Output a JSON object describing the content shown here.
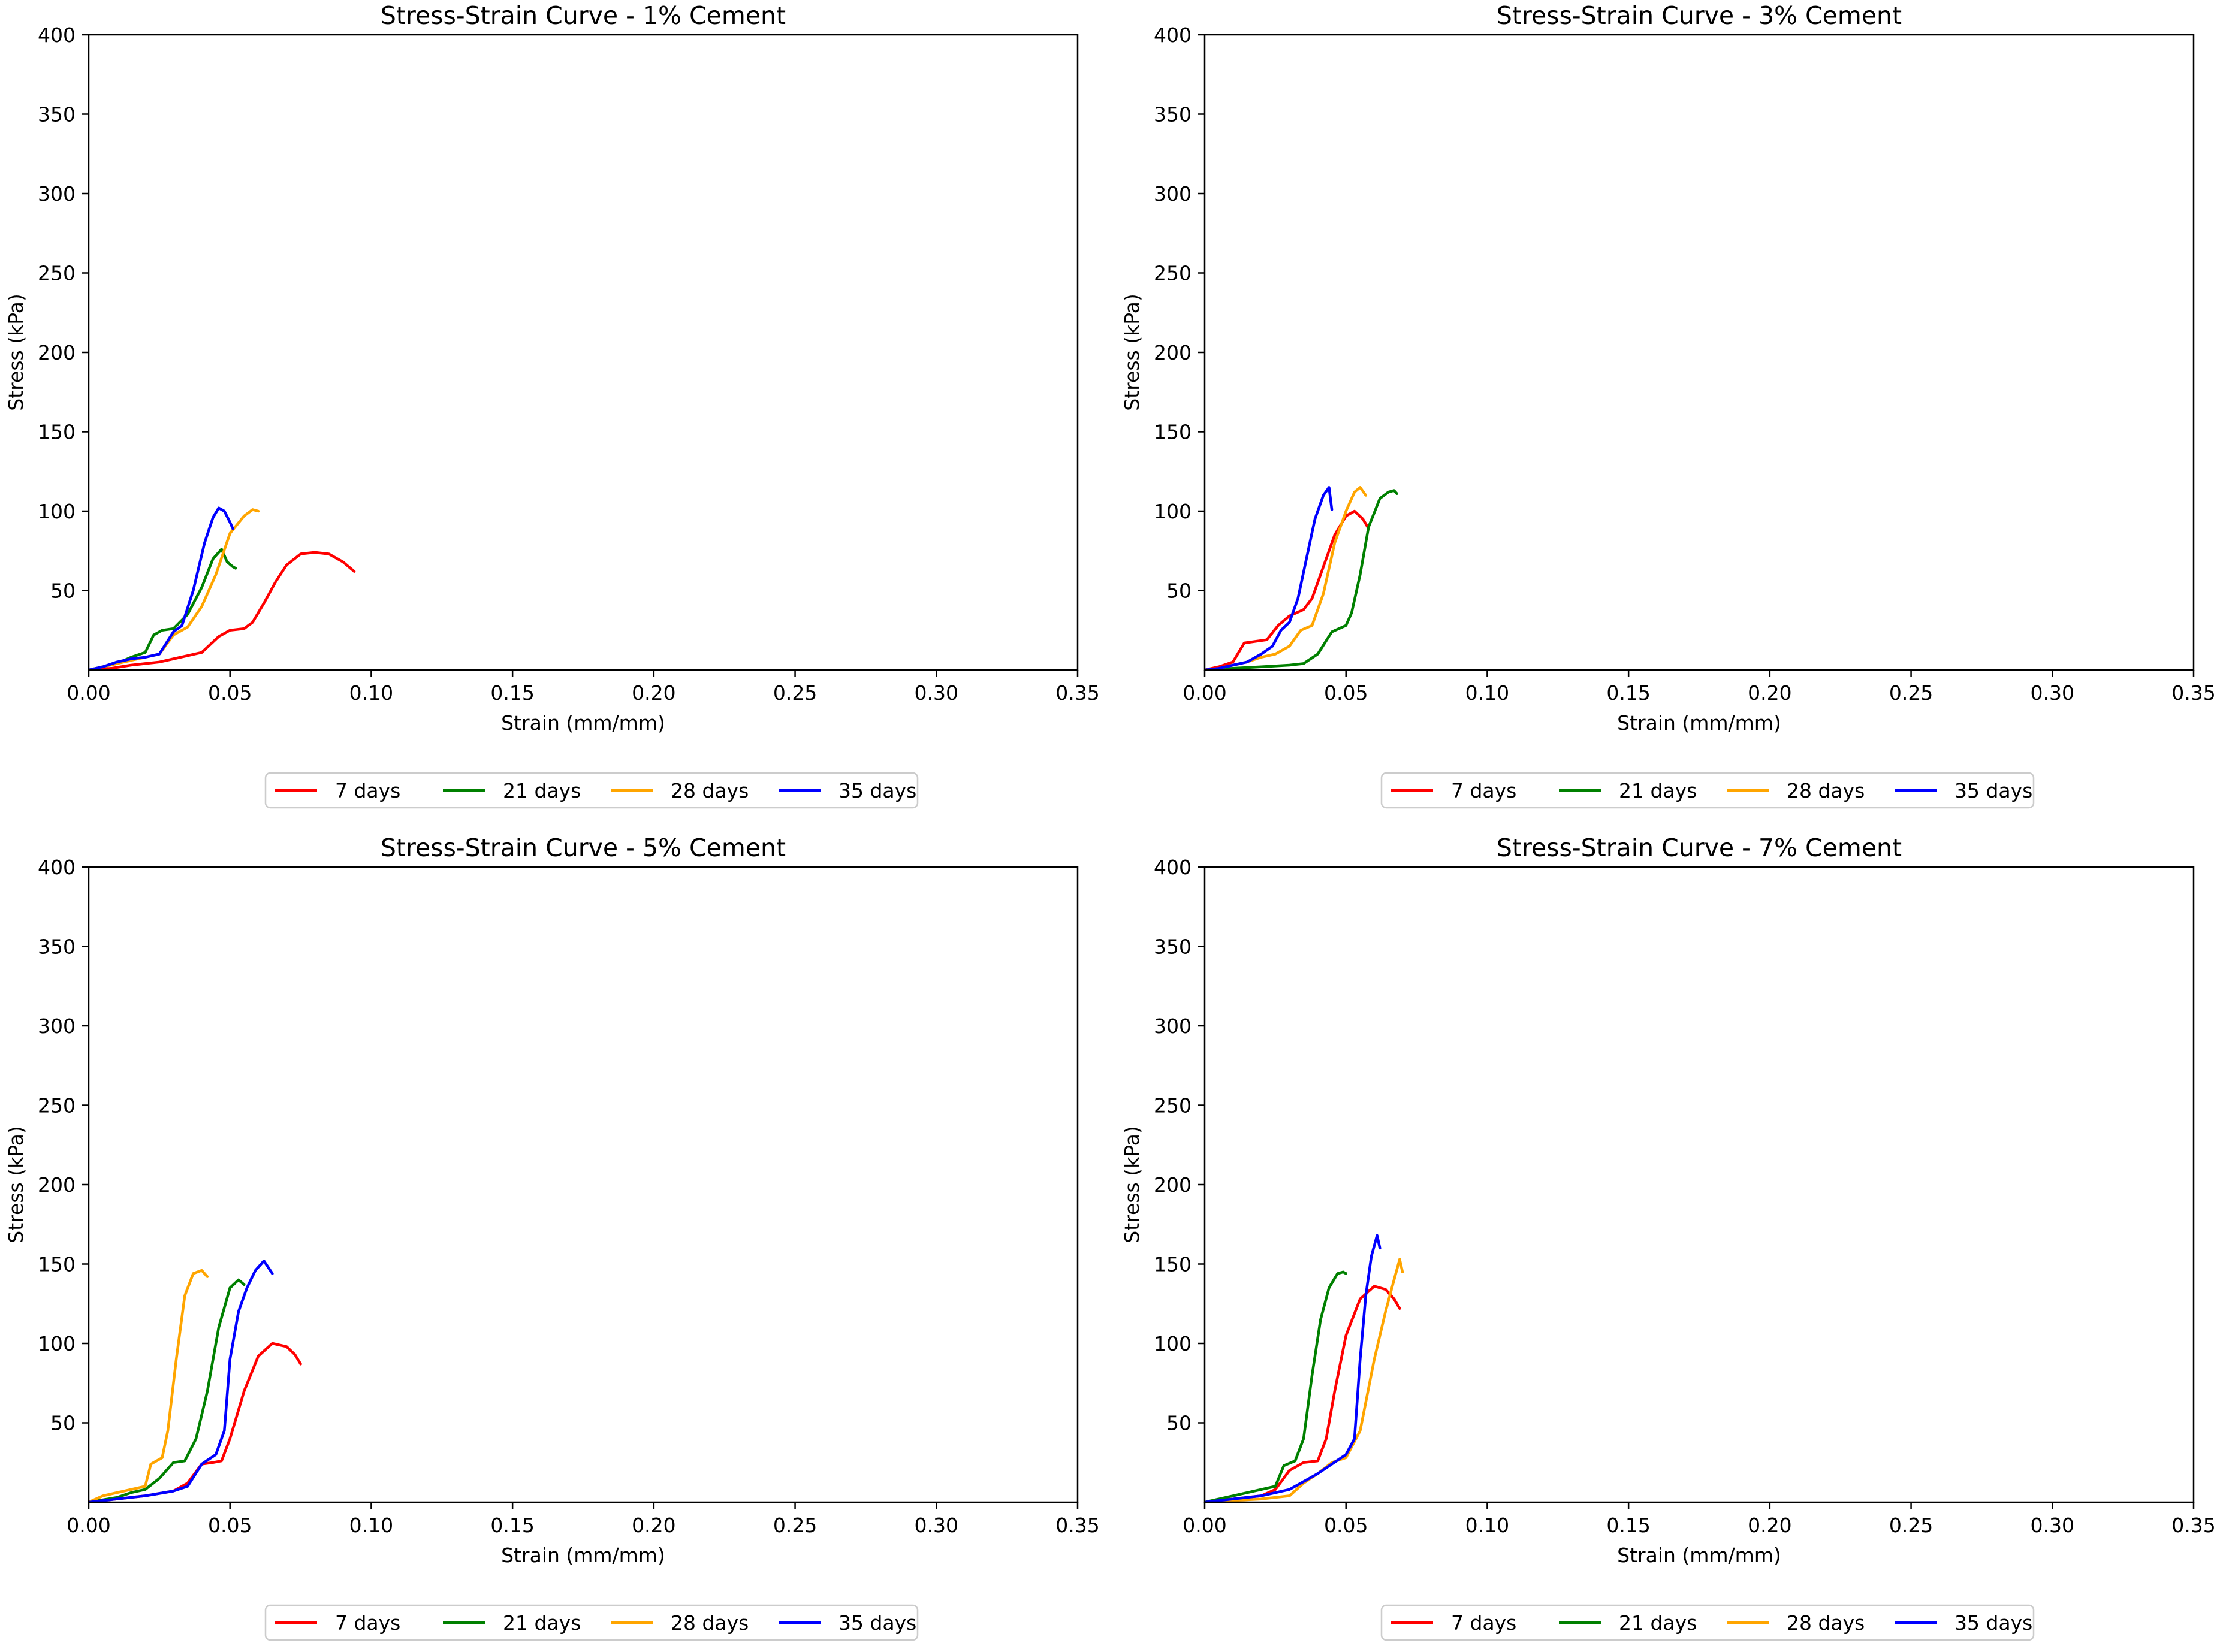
{
  "chart_data": [
    {
      "type": "line",
      "title": "Stress-Strain Curve - 1% Cement",
      "xlabel": "Strain (mm/mm)",
      "ylabel": "Stress (kPa)",
      "xlim": [
        0,
        0.35
      ],
      "ylim": [
        0,
        400
      ],
      "xticks": [
        "0.00",
        "0.05",
        "0.10",
        "0.15",
        "0.20",
        "0.25",
        "0.30",
        "0.35"
      ],
      "yticks": [
        "50",
        "100",
        "150",
        "200",
        "250",
        "300",
        "350",
        "400"
      ],
      "legend_position": "below",
      "series": [
        {
          "name": "7 days",
          "color": "#ff0000",
          "x": [
            0,
            0.008,
            0.015,
            0.02,
            0.025,
            0.03,
            0.035,
            0.04,
            0.043,
            0.046,
            0.05,
            0.055,
            0.058,
            0.062,
            0.066,
            0.07,
            0.075,
            0.08,
            0.085,
            0.09,
            0.094
          ],
          "y": [
            0,
            1,
            3,
            4,
            5,
            7,
            9,
            11,
            16,
            21,
            25,
            26,
            30,
            42,
            55,
            66,
            73,
            74,
            73,
            68,
            62
          ]
        },
        {
          "name": "21 days",
          "color": "#008000",
          "x": [
            0,
            0.005,
            0.01,
            0.015,
            0.02,
            0.023,
            0.026,
            0.03,
            0.035,
            0.04,
            0.044,
            0.047,
            0.049,
            0.051,
            0.052
          ],
          "y": [
            0,
            2,
            4,
            8,
            11,
            22,
            25,
            26,
            35,
            52,
            70,
            76,
            68,
            65,
            64
          ]
        },
        {
          "name": "28 days",
          "color": "#ffa500",
          "x": [
            0,
            0.005,
            0.01,
            0.015,
            0.02,
            0.025,
            0.03,
            0.035,
            0.04,
            0.045,
            0.05,
            0.055,
            0.058,
            0.06
          ],
          "y": [
            0,
            2,
            4,
            6,
            8,
            10,
            22,
            27,
            40,
            60,
            86,
            97,
            101,
            100
          ]
        },
        {
          "name": "35 days",
          "color": "#0000ff",
          "x": [
            0,
            0.005,
            0.01,
            0.015,
            0.02,
            0.025,
            0.03,
            0.033,
            0.037,
            0.041,
            0.044,
            0.046,
            0.048,
            0.05,
            0.051
          ],
          "y": [
            0,
            2,
            5,
            7,
            8,
            10,
            24,
            28,
            50,
            80,
            96,
            102,
            100,
            93,
            89
          ]
        }
      ]
    },
    {
      "type": "line",
      "title": "Stress-Strain Curve - 3% Cement",
      "xlabel": "Strain (mm/mm)",
      "ylabel": "Stress (kPa)",
      "xlim": [
        0,
        0.35
      ],
      "ylim": [
        0,
        400
      ],
      "xticks": [
        "0.00",
        "0.05",
        "0.10",
        "0.15",
        "0.20",
        "0.25",
        "0.30",
        "0.35"
      ],
      "yticks": [
        "50",
        "100",
        "150",
        "200",
        "250",
        "300",
        "350",
        "400"
      ],
      "legend_position": "below",
      "series": [
        {
          "name": "7 days",
          "color": "#ff0000",
          "x": [
            0,
            0.005,
            0.01,
            0.014,
            0.018,
            0.022,
            0.026,
            0.03,
            0.035,
            0.038,
            0.042,
            0.046,
            0.05,
            0.053,
            0.056,
            0.058
          ],
          "y": [
            0,
            2,
            5,
            17,
            18,
            19,
            28,
            34,
            38,
            45,
            65,
            85,
            97,
            100,
            95,
            89
          ]
        },
        {
          "name": "21 days",
          "color": "#008000",
          "x": [
            0,
            0.01,
            0.02,
            0.03,
            0.035,
            0.04,
            0.045,
            0.05,
            0.052,
            0.055,
            0.058,
            0.062,
            0.065,
            0.067,
            0.068
          ],
          "y": [
            0,
            1,
            2,
            3,
            4,
            10,
            24,
            28,
            36,
            60,
            90,
            108,
            112,
            113,
            111
          ]
        },
        {
          "name": "28 days",
          "color": "#ffa500",
          "x": [
            0,
            0.005,
            0.01,
            0.015,
            0.02,
            0.025,
            0.03,
            0.034,
            0.038,
            0.042,
            0.046,
            0.05,
            0.053,
            0.055,
            0.057
          ],
          "y": [
            0,
            1,
            3,
            5,
            8,
            10,
            15,
            25,
            28,
            48,
            80,
            100,
            112,
            115,
            110
          ]
        },
        {
          "name": "35 days",
          "color": "#0000ff",
          "x": [
            0,
            0.005,
            0.01,
            0.015,
            0.02,
            0.024,
            0.027,
            0.03,
            0.033,
            0.036,
            0.039,
            0.042,
            0.044,
            0.045
          ],
          "y": [
            0,
            1,
            3,
            5,
            10,
            15,
            25,
            30,
            45,
            70,
            95,
            110,
            115,
            101
          ]
        }
      ]
    },
    {
      "type": "line",
      "title": "Stress-Strain Curve - 5% Cement",
      "xlabel": "Strain (mm/mm)",
      "ylabel": "Stress (kPa)",
      "xlim": [
        0,
        0.35
      ],
      "ylim": [
        0,
        400
      ],
      "xticks": [
        "0.00",
        "0.05",
        "0.10",
        "0.15",
        "0.20",
        "0.25",
        "0.30",
        "0.35"
      ],
      "yticks": [
        "50",
        "100",
        "150",
        "200",
        "250",
        "300",
        "350",
        "400"
      ],
      "legend_position": "below",
      "series": [
        {
          "name": "7 days",
          "color": "#ff0000",
          "x": [
            0,
            0.01,
            0.02,
            0.03,
            0.035,
            0.04,
            0.044,
            0.047,
            0.05,
            0.055,
            0.06,
            0.065,
            0.07,
            0.073,
            0.075
          ],
          "y": [
            0,
            2,
            4,
            7,
            12,
            24,
            25,
            26,
            40,
            70,
            92,
            100,
            98,
            93,
            87
          ]
        },
        {
          "name": "21 days",
          "color": "#008000",
          "x": [
            0,
            0.01,
            0.015,
            0.02,
            0.025,
            0.03,
            0.034,
            0.038,
            0.042,
            0.046,
            0.05,
            0.053,
            0.055
          ],
          "y": [
            0,
            3,
            6,
            8,
            15,
            25,
            26,
            40,
            70,
            110,
            135,
            140,
            137
          ]
        },
        {
          "name": "28 days",
          "color": "#ffa500",
          "x": [
            0,
            0.005,
            0.01,
            0.015,
            0.02,
            0.022,
            0.026,
            0.028,
            0.031,
            0.034,
            0.037,
            0.04,
            0.042
          ],
          "y": [
            0,
            4,
            6,
            8,
            10,
            24,
            28,
            45,
            90,
            130,
            144,
            146,
            142
          ]
        },
        {
          "name": "35 days",
          "color": "#0000ff",
          "x": [
            0,
            0.01,
            0.02,
            0.03,
            0.035,
            0.04,
            0.045,
            0.048,
            0.05,
            0.053,
            0.056,
            0.059,
            0.062,
            0.065
          ],
          "y": [
            0,
            2,
            4,
            7,
            10,
            24,
            30,
            45,
            90,
            120,
            135,
            146,
            152,
            144
          ]
        }
      ]
    },
    {
      "type": "line",
      "title": "Stress-Strain Curve - 7% Cement",
      "xlabel": "Strain (mm/mm)",
      "ylabel": "Stress (kPa)",
      "xlim": [
        0,
        0.35
      ],
      "ylim": [
        0,
        400
      ],
      "xticks": [
        "0.00",
        "0.05",
        "0.10",
        "0.15",
        "0.20",
        "0.25",
        "0.30",
        "0.35"
      ],
      "yticks": [
        "50",
        "100",
        "150",
        "200",
        "250",
        "300",
        "350",
        "400"
      ],
      "legend_position": "below",
      "series": [
        {
          "name": "7 days",
          "color": "#ff0000",
          "x": [
            0,
            0.01,
            0.02,
            0.025,
            0.03,
            0.035,
            0.04,
            0.043,
            0.046,
            0.05,
            0.055,
            0.06,
            0.064,
            0.067,
            0.069
          ],
          "y": [
            0,
            2,
            4,
            8,
            20,
            25,
            26,
            40,
            70,
            105,
            128,
            136,
            134,
            128,
            122
          ]
        },
        {
          "name": "21 days",
          "color": "#008000",
          "x": [
            0,
            0.01,
            0.02,
            0.025,
            0.028,
            0.032,
            0.035,
            0.038,
            0.041,
            0.044,
            0.047,
            0.049,
            0.05
          ],
          "y": [
            0,
            4,
            8,
            10,
            23,
            26,
            40,
            80,
            115,
            135,
            144,
            145,
            144
          ]
        },
        {
          "name": "28 days",
          "color": "#ffa500",
          "x": [
            0,
            0.01,
            0.02,
            0.03,
            0.035,
            0.04,
            0.045,
            0.05,
            0.055,
            0.06,
            0.064,
            0.067,
            0.069,
            0.07
          ],
          "y": [
            0,
            1,
            2,
            4,
            12,
            18,
            25,
            28,
            45,
            90,
            120,
            140,
            153,
            145
          ]
        },
        {
          "name": "35 days",
          "color": "#0000ff",
          "x": [
            0,
            0.01,
            0.02,
            0.03,
            0.035,
            0.04,
            0.045,
            0.05,
            0.053,
            0.055,
            0.057,
            0.059,
            0.061,
            0.062
          ],
          "y": [
            0,
            2,
            4,
            8,
            13,
            18,
            24,
            30,
            40,
            90,
            130,
            155,
            168,
            160
          ]
        }
      ]
    }
  ]
}
